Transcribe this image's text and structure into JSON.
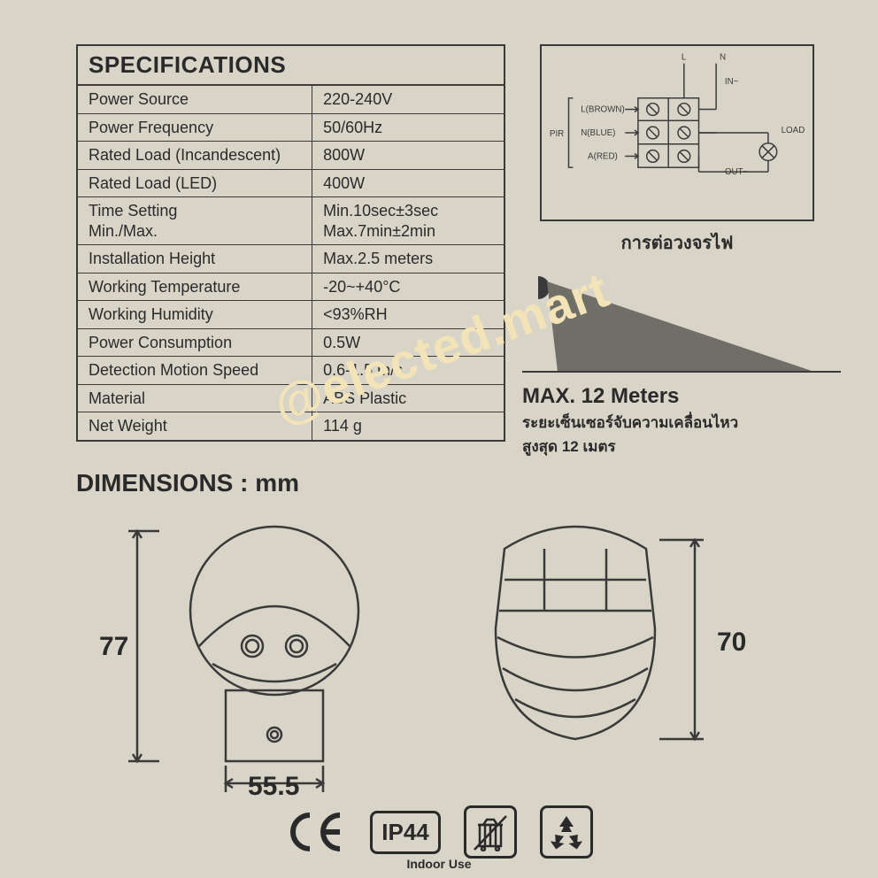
{
  "colors": {
    "bg": "#d8d5c8",
    "line": "#3a3a3a",
    "fill_gray": "#6f6f68",
    "watermark": "#f2e4b8"
  },
  "spec": {
    "title": "SPECIFICATIONS",
    "rows": [
      {
        "label": "Power Source",
        "value": "220-240V"
      },
      {
        "label": "Power Frequency",
        "value": "50/60Hz"
      },
      {
        "label": "Rated Load (Incandescent)",
        "value": "800W"
      },
      {
        "label": "Rated Load (LED)",
        "value": "400W"
      },
      {
        "label": "Time Setting\nMin./Max.",
        "value": "Min.10sec±3sec\nMax.7min±2min"
      },
      {
        "label": "Installation Height",
        "value": "Max.2.5 meters"
      },
      {
        "label": "Working Temperature",
        "value": "-20~+40°C"
      },
      {
        "label": "Working Humidity",
        "value": "<93%RH"
      },
      {
        "label": "Power Consumption",
        "value": "0.5W"
      },
      {
        "label": "Detection Motion Speed",
        "value": "0.6-1.5 m/s"
      },
      {
        "label": "Material",
        "value": "ABS Plastic"
      },
      {
        "label": "Net Weight",
        "value": "114 g"
      }
    ]
  },
  "wiring": {
    "caption": "การต่อวงจรไฟ",
    "labels": {
      "pir": "PIR",
      "l_brown": "L(BROWN)",
      "n_blue": "N(BLUE)",
      "a_red": "A(RED)",
      "L": "L",
      "N": "N",
      "in": "IN~",
      "out": "OUT~",
      "load": "LOAD"
    }
  },
  "range": {
    "title": "MAX. 12 Meters",
    "sub1": "ระยะเซ็นเซอร์จับความเคลื่อนไหว",
    "sub2": "สูงสุด 12 เมตร",
    "beam_color": "#6f6f68"
  },
  "dimensions": {
    "title": "DIMENSIONS : mm",
    "height_front": "77",
    "width_front": "55.5",
    "height_side": "70"
  },
  "cert": {
    "ip": "IP44",
    "indoor": "Indoor Use"
  },
  "watermark": "@elected.mart"
}
